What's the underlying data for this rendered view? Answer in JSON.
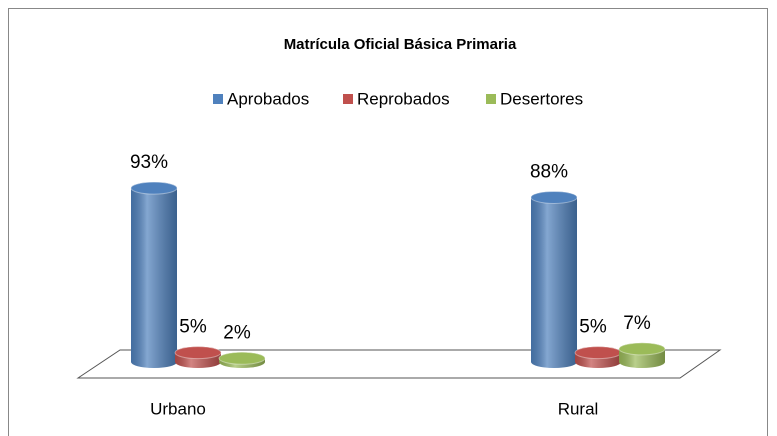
{
  "chart_data": {
    "type": "bar",
    "title": "Matrícula Oficial Básica Primaria",
    "categories": [
      "Urbano",
      "Rural"
    ],
    "series": [
      {
        "name": "Aprobados",
        "color": "#4f81bd",
        "values": [
          93,
          88
        ],
        "value_labels": [
          "93%",
          "88%"
        ]
      },
      {
        "name": "Reprobados",
        "color": "#c0504d",
        "values": [
          5,
          5
        ],
        "value_labels": [
          "5%",
          "5%"
        ]
      },
      {
        "name": "Desertores",
        "color": "#9bbb59",
        "values": [
          2,
          7
        ],
        "value_labels": [
          "2%",
          "7%"
        ]
      }
    ],
    "legend": "top"
  }
}
